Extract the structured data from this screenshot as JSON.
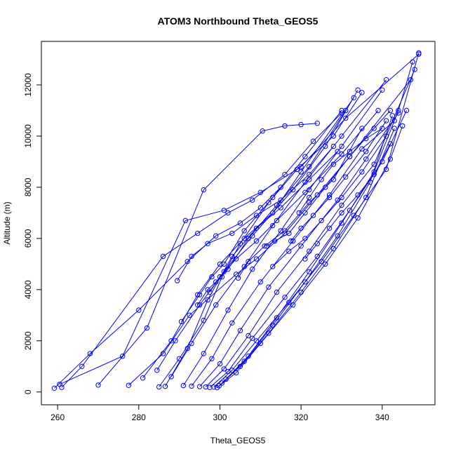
{
  "chart_data": {
    "type": "scatter",
    "title": "ATOM3 Northbound Theta_GEOS5",
    "xlabel": "Theta_GEOS5",
    "ylabel": "Altitude (m)",
    "xlim": [
      256,
      353
    ],
    "ylim": [
      -500,
      13700
    ],
    "xticks": [
      "260",
      "280",
      "300",
      "320",
      "340"
    ],
    "yticks": [
      "0",
      "2000",
      "4000",
      "6000",
      "8000",
      "10000",
      "12000"
    ],
    "xtick_values": [
      260,
      280,
      300,
      320,
      340
    ],
    "ytick_values": [
      0,
      2000,
      4000,
      6000,
      8000,
      10000,
      12000
    ],
    "grid": false,
    "legend": "none",
    "line_color": "#0000ff",
    "marker": "open-circle",
    "series": [
      {
        "x": [
          259.2,
          268,
          280,
          292,
          299,
          305,
          310,
          315
        ],
        "y": [
          150,
          1500,
          3200,
          5100,
          6100,
          6600,
          7200,
          8000
        ]
      },
      {
        "x": [
          260.5,
          276,
          291.5,
          301,
          310,
          320,
          331,
          349
        ],
        "y": [
          300,
          1400,
          6700,
          7100,
          7800,
          8800,
          10700,
          13200
        ]
      },
      {
        "x": [
          261,
          266,
          286,
          294.5,
          302,
          308,
          316,
          323,
          330
        ],
        "y": [
          180,
          1000,
          5300,
          6200,
          7000,
          7500,
          8500,
          9800,
          10900
        ]
      },
      {
        "x": [
          270,
          282,
          296,
          310.5,
          316,
          320,
          324
        ],
        "y": [
          270,
          2500,
          7900,
          10200,
          10400,
          10450,
          10500
        ]
      },
      {
        "x": [
          277.5,
          286,
          292.5,
          304,
          309,
          316,
          324,
          332,
          347
        ],
        "y": [
          260,
          1500,
          3000,
          4600,
          5200,
          6200,
          7700,
          9200,
          12200
        ]
      },
      {
        "x": [
          285,
          290,
          296,
          300.5,
          305,
          312,
          319,
          328,
          335
        ],
        "y": [
          200,
          1300,
          2800,
          4500,
          5800,
          7400,
          8700,
          10000,
          11700
        ]
      },
      {
        "x": [
          286.5,
          292,
          297,
          303,
          309,
          315,
          322,
          329
        ],
        "y": [
          220,
          1700,
          3600,
          5300,
          6400,
          7200,
          8300,
          9400
        ]
      },
      {
        "x": [
          291,
          296,
          302,
          308,
          315,
          322,
          330,
          340
        ],
        "y": [
          250,
          1500,
          3200,
          4800,
          6300,
          7900,
          9600,
          11800
        ]
      },
      {
        "x": [
          293,
          298,
          303,
          310,
          318,
          327,
          335,
          343
        ],
        "y": [
          230,
          1300,
          2700,
          4300,
          5900,
          7700,
          9500,
          10600
        ]
      },
      {
        "x": [
          295,
          300,
          305,
          312,
          320,
          329,
          336,
          344
        ],
        "y": [
          210,
          1100,
          2400,
          4100,
          5700,
          7500,
          9100,
          10900
        ]
      },
      {
        "x": [
          296.5,
          301,
          307,
          314,
          322,
          330,
          338,
          348
        ],
        "y": [
          200,
          900,
          2200,
          3900,
          5500,
          7300,
          8900,
          12600
        ]
      },
      {
        "x": [
          297.5,
          302,
          308,
          316,
          324,
          332,
          340,
          346
        ],
        "y": [
          180,
          800,
          2100,
          3700,
          5300,
          7100,
          9000,
          11000
        ]
      },
      {
        "x": [
          298.5,
          303,
          309,
          317,
          325,
          333,
          341,
          349
        ],
        "y": [
          190,
          850,
          2000,
          3500,
          5100,
          6900,
          8700,
          13250
        ]
      },
      {
        "x": [
          299.3,
          304,
          310,
          318,
          326,
          334,
          342,
          345
        ],
        "y": [
          170,
          750,
          1900,
          3400,
          5000,
          6800,
          9100,
          10400
        ]
      },
      {
        "x": [
          299.8,
          305,
          312,
          320,
          328,
          336,
          343
        ],
        "y": [
          240,
          1000,
          2300,
          3900,
          5600,
          7600,
          10300
        ]
      },
      {
        "x": [
          300.5,
          306,
          313,
          321,
          329,
          337,
          342.5
        ],
        "y": [
          350,
          1200,
          2600,
          4300,
          6100,
          8200,
          10800
        ]
      },
      {
        "x": [
          301.5,
          307,
          314,
          322,
          330,
          338,
          344,
          347.5
        ],
        "y": [
          500,
          1400,
          2900,
          4700,
          6600,
          8600,
          11000,
          12900
        ]
      },
      {
        "x": [
          288,
          293,
          299,
          306,
          313,
          321,
          330,
          341
        ],
        "y": [
          600,
          1900,
          3400,
          4900,
          6500,
          8200,
          10000,
          12200
        ]
      },
      {
        "x": [
          284.5,
          289,
          295,
          301,
          308,
          318,
          326,
          334
        ],
        "y": [
          850,
          2000,
          3400,
          4700,
          6100,
          7900,
          9600,
          11800
        ]
      },
      {
        "x": [
          281,
          288,
          294.5,
          300,
          306,
          313,
          320,
          333
        ],
        "y": [
          550,
          2000,
          3800,
          5000,
          6000,
          7000,
          8600,
          11500
        ]
      },
      {
        "x": [
          290.5,
          295,
          298,
          301,
          306,
          313,
          321,
          330
        ],
        "y": [
          2750,
          3800,
          4500,
          5000,
          6300,
          7600,
          9200,
          11000
        ]
      },
      {
        "x": [
          294.5,
          297,
          299,
          302,
          307,
          314,
          322,
          331
        ],
        "y": [
          3400,
          4000,
          4300,
          4800,
          6000,
          7300,
          8800,
          11000
        ]
      },
      {
        "x": [
          289.5,
          293,
          297,
          303,
          309,
          315,
          322,
          328
        ],
        "y": [
          4350,
          5300,
          5800,
          6200,
          6900,
          7500,
          8500,
          9600
        ]
      },
      {
        "x": [
          297.5,
          300,
          304,
          309,
          314,
          321,
          330,
          339
        ],
        "y": [
          3900,
          4500,
          5200,
          5900,
          6700,
          7800,
          9300,
          11000
        ]
      },
      {
        "x": [
          304.5,
          307,
          311,
          316,
          322,
          328,
          335
        ],
        "y": [
          4450,
          5100,
          5700,
          6300,
          7400,
          8300,
          10300
        ]
      },
      {
        "x": [
          311.5,
          313.5,
          317,
          321,
          326,
          332,
          338,
          342
        ],
        "y": [
          5700,
          5900,
          6200,
          7000,
          8000,
          9200,
          10300,
          11000
        ]
      },
      {
        "x": [
          313,
          317,
          321,
          325,
          330,
          335,
          341
        ],
        "y": [
          4900,
          5500,
          6000,
          6700,
          7600,
          8600,
          10000
        ]
      },
      {
        "x": [
          317.5,
          320,
          323,
          327,
          331,
          336,
          341
        ],
        "y": [
          5900,
          6400,
          6900,
          7600,
          8400,
          9400,
          10600
        ]
      },
      {
        "x": [
          319.5,
          322,
          325,
          328,
          332,
          336,
          340
        ],
        "y": [
          7000,
          7600,
          8300,
          8900,
          9400,
          9900,
          10300
        ]
      },
      {
        "x": [
          321,
          324,
          327,
          330,
          334,
          338,
          342
        ],
        "y": [
          5200,
          5800,
          6400,
          7000,
          7700,
          8500,
          9700
        ]
      }
    ]
  }
}
